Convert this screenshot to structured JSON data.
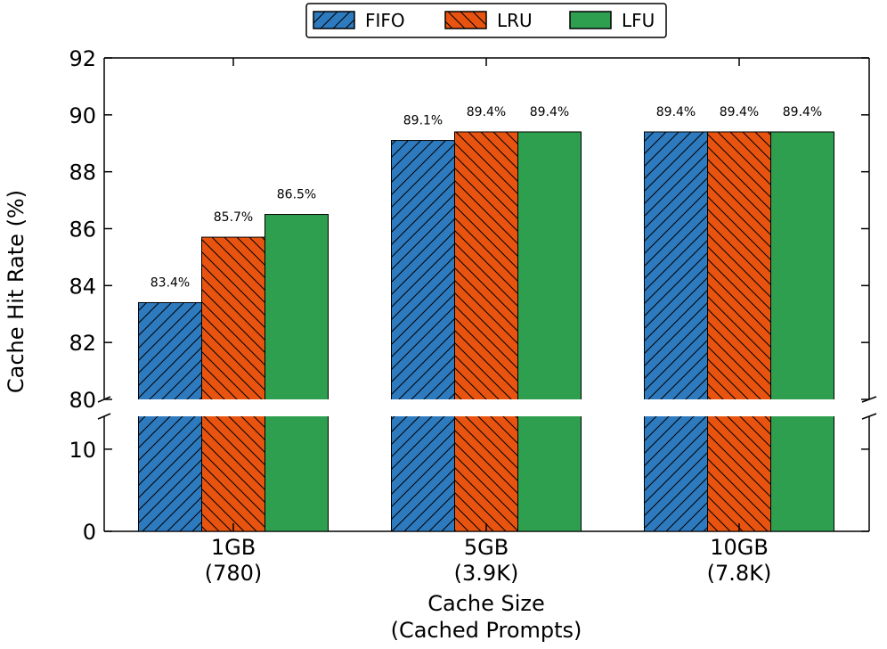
{
  "chart_data": {
    "type": "bar",
    "categories": [
      {
        "line1": "1GB",
        "line2": "(780)"
      },
      {
        "line1": "5GB",
        "line2": "(3.9K)"
      },
      {
        "line1": "10GB",
        "line2": "(7.8K)"
      }
    ],
    "series": [
      {
        "name": "FIFO",
        "color": "#2e7abf",
        "hatch": "diag-forward",
        "values": [
          83.4,
          89.1,
          89.4
        ],
        "labels": [
          "83.4%",
          "89.1%",
          "89.4%"
        ]
      },
      {
        "name": "LRU",
        "color": "#e8540f",
        "hatch": "diag-back",
        "values": [
          85.7,
          89.4,
          89.4
        ],
        "labels": [
          "85.7%",
          "89.4%",
          "89.4%"
        ]
      },
      {
        "name": "LFU",
        "color": "#2e9e4f",
        "hatch": "none",
        "values": [
          86.5,
          89.4,
          89.4
        ],
        "labels": [
          "86.5%",
          "89.4%",
          "89.4%"
        ]
      }
    ],
    "xlabel_line1": "Cache Size",
    "xlabel_line2": "(Cached Prompts)",
    "ylabel": "Cache Hit Rate (%)",
    "y_upper": {
      "range": [
        80,
        92
      ],
      "ticks": [
        "80",
        "82",
        "84",
        "86",
        "88",
        "90",
        "92"
      ]
    },
    "y_lower": {
      "range": [
        0,
        14
      ],
      "ticks": [
        "0",
        "10"
      ]
    },
    "legend_position": "top-center"
  }
}
